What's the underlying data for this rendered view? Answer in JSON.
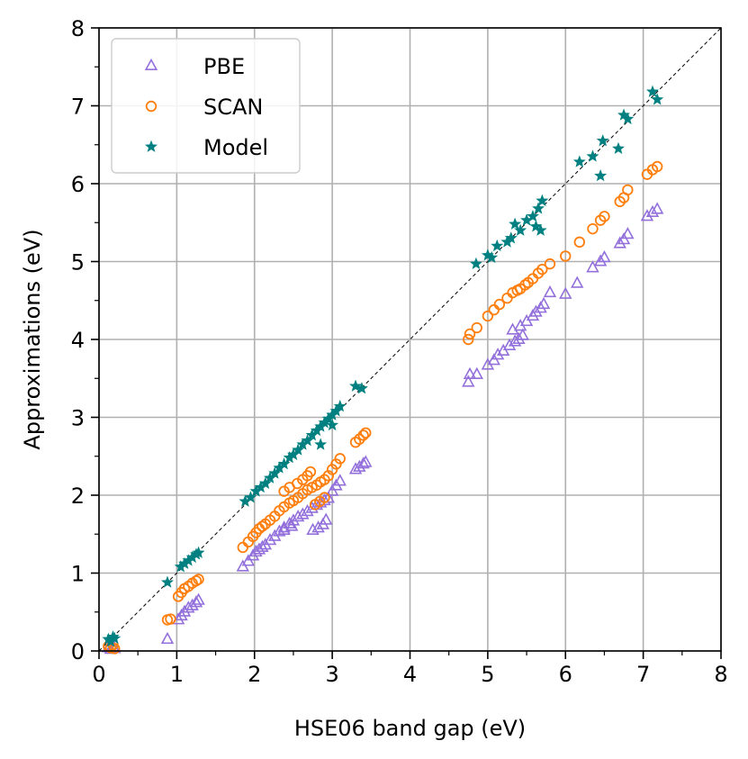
{
  "chart_data": {
    "type": "scatter",
    "title": "",
    "xlabel": "HSE06 band gap (eV)",
    "ylabel": "Approximations (eV)",
    "xlim": [
      0,
      8
    ],
    "ylim": [
      0,
      8
    ],
    "xticks": [
      "0",
      "1",
      "2",
      "3",
      "4",
      "5",
      "6",
      "7",
      "8"
    ],
    "yticks": [
      "0",
      "1",
      "2",
      "3",
      "4",
      "5",
      "6",
      "7",
      "8"
    ],
    "grid": true,
    "legend_position": "top-left",
    "reference_line": "y = x (black dashed)",
    "series": [
      {
        "name": "PBE",
        "marker": "triangle",
        "color": "#9370DB",
        "points": [
          [
            0.12,
            0.04
          ],
          [
            0.15,
            0.02
          ],
          [
            0.18,
            0.05
          ],
          [
            0.2,
            0.03
          ],
          [
            0.88,
            0.15
          ],
          [
            1.02,
            0.4
          ],
          [
            1.06,
            0.45
          ],
          [
            1.1,
            0.5
          ],
          [
            1.15,
            0.55
          ],
          [
            1.2,
            0.58
          ],
          [
            1.25,
            0.62
          ],
          [
            1.28,
            0.65
          ],
          [
            1.85,
            1.08
          ],
          [
            1.92,
            1.15
          ],
          [
            1.98,
            1.22
          ],
          [
            2.02,
            1.27
          ],
          [
            2.06,
            1.3
          ],
          [
            2.1,
            1.33
          ],
          [
            2.14,
            1.36
          ],
          [
            2.2,
            1.42
          ],
          [
            2.26,
            1.47
          ],
          [
            2.32,
            1.53
          ],
          [
            2.38,
            1.58
          ],
          [
            2.45,
            1.63
          ],
          [
            2.5,
            1.67
          ],
          [
            2.56,
            1.72
          ],
          [
            2.62,
            1.75
          ],
          [
            2.68,
            1.79
          ],
          [
            2.74,
            1.83
          ],
          [
            2.8,
            1.87
          ],
          [
            2.85,
            1.9
          ],
          [
            2.9,
            1.93
          ],
          [
            2.95,
            1.96
          ],
          [
            3.0,
            2.05
          ],
          [
            3.05,
            2.12
          ],
          [
            3.1,
            2.18
          ],
          [
            2.38,
            1.55
          ],
          [
            2.48,
            1.6
          ],
          [
            2.75,
            1.55
          ],
          [
            2.82,
            1.58
          ],
          [
            2.88,
            1.62
          ],
          [
            2.92,
            1.68
          ],
          [
            3.3,
            2.33
          ],
          [
            3.35,
            2.36
          ],
          [
            3.4,
            2.4
          ],
          [
            3.43,
            2.42
          ],
          [
            4.75,
            3.45
          ],
          [
            4.77,
            3.55
          ],
          [
            4.86,
            3.55
          ],
          [
            5.0,
            3.67
          ],
          [
            5.08,
            3.73
          ],
          [
            5.13,
            3.8
          ],
          [
            5.2,
            3.85
          ],
          [
            5.28,
            3.92
          ],
          [
            5.35,
            3.97
          ],
          [
            5.4,
            4.0
          ],
          [
            5.45,
            4.05
          ],
          [
            5.32,
            4.12
          ],
          [
            5.42,
            4.17
          ],
          [
            5.5,
            4.23
          ],
          [
            5.58,
            4.3
          ],
          [
            5.62,
            4.35
          ],
          [
            5.68,
            4.4
          ],
          [
            5.72,
            4.45
          ],
          [
            5.8,
            4.6
          ],
          [
            6.0,
            4.58
          ],
          [
            6.15,
            4.72
          ],
          [
            6.35,
            4.92
          ],
          [
            6.45,
            5.0
          ],
          [
            6.5,
            5.05
          ],
          [
            6.7,
            5.23
          ],
          [
            6.75,
            5.28
          ],
          [
            6.8,
            5.35
          ],
          [
            7.05,
            5.58
          ],
          [
            7.12,
            5.63
          ],
          [
            7.18,
            5.67
          ]
        ]
      },
      {
        "name": "SCAN",
        "marker": "circle",
        "color": "#FF7F0E",
        "points": [
          [
            0.12,
            0.06
          ],
          [
            0.15,
            0.04
          ],
          [
            0.18,
            0.08
          ],
          [
            0.2,
            0.03
          ],
          [
            0.88,
            0.4
          ],
          [
            0.92,
            0.41
          ],
          [
            1.02,
            0.7
          ],
          [
            1.06,
            0.75
          ],
          [
            1.1,
            0.8
          ],
          [
            1.15,
            0.83
          ],
          [
            1.2,
            0.87
          ],
          [
            1.25,
            0.9
          ],
          [
            1.28,
            0.92
          ],
          [
            1.85,
            1.33
          ],
          [
            1.92,
            1.4
          ],
          [
            1.98,
            1.47
          ],
          [
            2.02,
            1.52
          ],
          [
            2.06,
            1.57
          ],
          [
            2.1,
            1.6
          ],
          [
            2.14,
            1.63
          ],
          [
            2.2,
            1.68
          ],
          [
            2.26,
            1.73
          ],
          [
            2.32,
            1.8
          ],
          [
            2.38,
            1.85
          ],
          [
            2.45,
            1.9
          ],
          [
            2.5,
            1.93
          ],
          [
            2.56,
            1.97
          ],
          [
            2.62,
            2.02
          ],
          [
            2.68,
            2.07
          ],
          [
            2.74,
            2.1
          ],
          [
            2.8,
            2.13
          ],
          [
            2.85,
            2.17
          ],
          [
            2.9,
            2.2
          ],
          [
            2.95,
            2.25
          ],
          [
            3.0,
            2.33
          ],
          [
            3.05,
            2.4
          ],
          [
            3.1,
            2.47
          ],
          [
            2.38,
            2.05
          ],
          [
            2.45,
            2.1
          ],
          [
            2.55,
            2.15
          ],
          [
            2.62,
            2.2
          ],
          [
            2.68,
            2.25
          ],
          [
            2.72,
            2.3
          ],
          [
            2.78,
            1.88
          ],
          [
            2.84,
            1.92
          ],
          [
            2.9,
            1.97
          ],
          [
            3.3,
            2.68
          ],
          [
            3.35,
            2.72
          ],
          [
            3.4,
            2.77
          ],
          [
            3.43,
            2.8
          ],
          [
            4.75,
            4.0
          ],
          [
            4.77,
            4.07
          ],
          [
            4.86,
            4.15
          ],
          [
            5.0,
            4.3
          ],
          [
            5.08,
            4.38
          ],
          [
            5.15,
            4.45
          ],
          [
            5.25,
            4.53
          ],
          [
            5.32,
            4.6
          ],
          [
            5.38,
            4.63
          ],
          [
            5.42,
            4.65
          ],
          [
            5.48,
            4.7
          ],
          [
            5.52,
            4.73
          ],
          [
            5.58,
            4.78
          ],
          [
            5.65,
            4.85
          ],
          [
            5.7,
            4.9
          ],
          [
            5.8,
            4.97
          ],
          [
            6.0,
            5.07
          ],
          [
            6.18,
            5.25
          ],
          [
            6.35,
            5.42
          ],
          [
            6.45,
            5.53
          ],
          [
            6.5,
            5.58
          ],
          [
            6.7,
            5.77
          ],
          [
            6.75,
            5.82
          ],
          [
            6.8,
            5.92
          ],
          [
            7.05,
            6.12
          ],
          [
            7.12,
            6.18
          ],
          [
            7.18,
            6.22
          ]
        ]
      },
      {
        "name": "Model",
        "marker": "star",
        "color": "#008080",
        "points": [
          [
            0.12,
            0.15
          ],
          [
            0.15,
            0.12
          ],
          [
            0.18,
            0.18
          ],
          [
            0.2,
            0.16
          ],
          [
            0.88,
            0.88
          ],
          [
            1.05,
            1.08
          ],
          [
            1.1,
            1.12
          ],
          [
            1.15,
            1.16
          ],
          [
            1.2,
            1.2
          ],
          [
            1.25,
            1.24
          ],
          [
            1.28,
            1.26
          ],
          [
            1.88,
            1.92
          ],
          [
            1.95,
            1.97
          ],
          [
            2.02,
            2.05
          ],
          [
            2.08,
            2.1
          ],
          [
            2.14,
            2.15
          ],
          [
            2.2,
            2.22
          ],
          [
            2.26,
            2.28
          ],
          [
            2.32,
            2.35
          ],
          [
            2.38,
            2.4
          ],
          [
            2.45,
            2.48
          ],
          [
            2.5,
            2.52
          ],
          [
            2.56,
            2.58
          ],
          [
            2.62,
            2.65
          ],
          [
            2.68,
            2.7
          ],
          [
            2.74,
            2.77
          ],
          [
            2.8,
            2.83
          ],
          [
            2.85,
            2.88
          ],
          [
            2.9,
            2.93
          ],
          [
            2.95,
            2.98
          ],
          [
            3.0,
            3.03
          ],
          [
            3.05,
            3.08
          ],
          [
            3.1,
            3.14
          ],
          [
            2.85,
            2.65
          ],
          [
            3.0,
            2.9
          ],
          [
            3.3,
            3.4
          ],
          [
            3.38,
            3.37
          ],
          [
            4.85,
            4.97
          ],
          [
            5.0,
            5.08
          ],
          [
            5.05,
            5.05
          ],
          [
            5.12,
            5.2
          ],
          [
            5.25,
            5.25
          ],
          [
            5.3,
            5.3
          ],
          [
            5.35,
            5.48
          ],
          [
            5.42,
            5.4
          ],
          [
            5.5,
            5.53
          ],
          [
            5.58,
            5.58
          ],
          [
            5.62,
            5.45
          ],
          [
            5.65,
            5.68
          ],
          [
            5.7,
            5.78
          ],
          [
            5.68,
            5.4
          ],
          [
            6.18,
            6.28
          ],
          [
            6.35,
            6.35
          ],
          [
            6.45,
            6.1
          ],
          [
            6.48,
            6.55
          ],
          [
            6.68,
            6.45
          ],
          [
            6.75,
            6.88
          ],
          [
            6.8,
            6.83
          ],
          [
            7.12,
            7.18
          ],
          [
            7.18,
            7.08
          ]
        ]
      }
    ]
  }
}
